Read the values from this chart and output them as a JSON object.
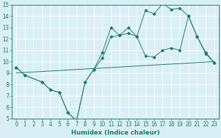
{
  "line1_x": [
    0,
    1,
    3,
    4,
    5,
    6,
    7,
    8,
    9,
    10,
    11,
    12,
    13,
    14,
    15,
    16,
    17,
    18,
    19,
    20,
    21,
    22,
    23
  ],
  "line1_y": [
    9.5,
    8.8,
    8.2,
    7.5,
    7.3,
    5.5,
    4.8,
    8.2,
    9.3,
    10.8,
    13.0,
    12.3,
    12.5,
    12.2,
    14.5,
    14.2,
    15.1,
    14.6,
    14.7,
    14.0,
    12.2,
    10.8,
    9.9
  ],
  "line2_x": [
    0,
    1,
    3,
    4,
    5,
    6,
    7,
    8,
    9,
    10,
    11,
    12,
    13,
    14,
    15,
    16,
    17,
    18,
    19,
    20,
    21,
    22,
    23
  ],
  "line2_y": [
    9.5,
    8.8,
    8.2,
    7.5,
    7.3,
    5.5,
    4.8,
    8.2,
    9.3,
    10.3,
    12.2,
    12.3,
    13.0,
    12.2,
    10.5,
    10.4,
    11.0,
    11.2,
    11.0,
    14.0,
    12.2,
    10.7,
    9.9
  ],
  "line3_x": [
    0,
    23
  ],
  "line3_y": [
    9.0,
    10.0
  ],
  "color": "#1a7a6e",
  "bg_color": "#d9eff5",
  "grid_color": "#b8d8e0",
  "xlim": [
    -0.5,
    23.5
  ],
  "ylim": [
    5,
    15
  ],
  "xticks": [
    0,
    1,
    2,
    3,
    4,
    5,
    6,
    7,
    8,
    9,
    10,
    11,
    12,
    13,
    14,
    15,
    16,
    17,
    18,
    19,
    20,
    21,
    22,
    23
  ],
  "yticks": [
    5,
    6,
    7,
    8,
    9,
    10,
    11,
    12,
    13,
    14,
    15
  ],
  "xlabel": "Humidex (Indice chaleur)",
  "label_fontsize": 6.5,
  "tick_fontsize": 5.5
}
